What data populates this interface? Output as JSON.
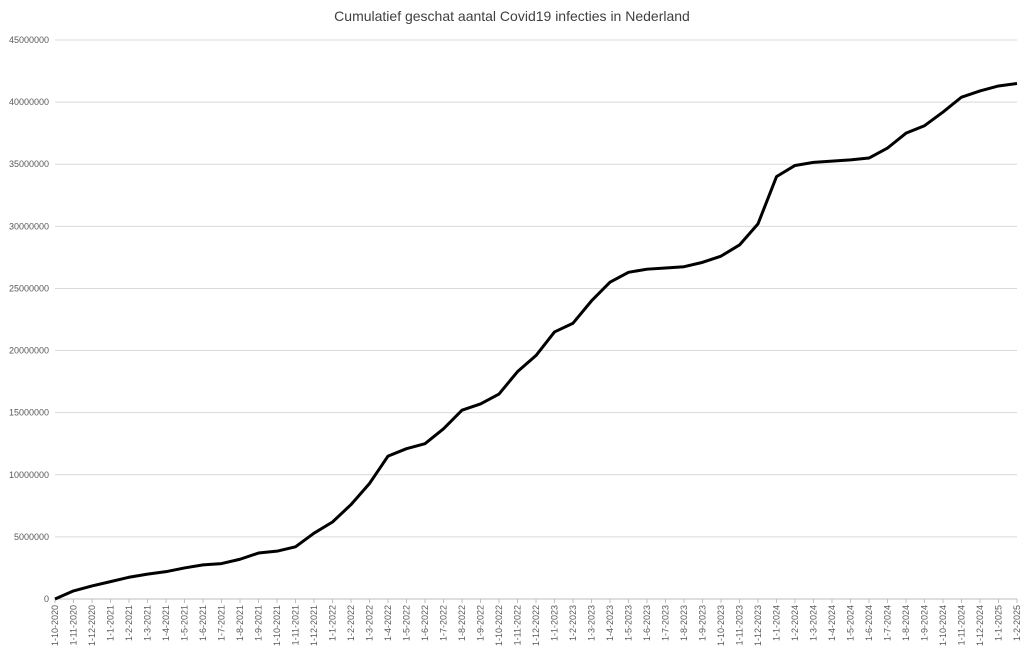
{
  "chart_data": {
    "type": "line",
    "title": "Cumulatief geschat aantal Covid19 infecties in Nederland",
    "categories": [
      "1-10-2020",
      "1-11-2020",
      "1-12-2020",
      "1-1-2021",
      "1-2-2021",
      "1-3-2021",
      "1-4-2021",
      "1-5-2021",
      "1-6-2021",
      "1-7-2021",
      "1-8-2021",
      "1-9-2021",
      "1-10-2021",
      "1-11-2021",
      "1-12-2021",
      "1-1-2022",
      "1-2-2022",
      "1-3-2022",
      "1-4-2022",
      "1-5-2022",
      "1-6-2022",
      "1-7-2022",
      "1-8-2022",
      "1-9-2022",
      "1-10-2022",
      "1-11-2022",
      "1-12-2022",
      "1-1-2023",
      "1-2-2023",
      "1-3-2023",
      "1-4-2023",
      "1-5-2023",
      "1-6-2023",
      "1-7-2023",
      "1-8-2023",
      "1-9-2023",
      "1-10-2023",
      "1-11-2023",
      "1-12-2023",
      "1-1-2024",
      "1-2-2024",
      "1-3-2024",
      "1-4-2024",
      "1-5-2024",
      "1-6-2024",
      "1-7-2024",
      "1-8-2024",
      "1-9-2024",
      "1-10-2024",
      "1-11-2024",
      "1-12-2024",
      "1-1-2025",
      "1-2-2025"
    ],
    "values": [
      0,
      650000,
      1050000,
      1400000,
      1750000,
      2000000,
      2200000,
      2500000,
      2750000,
      2850000,
      3200000,
      3700000,
      3850000,
      4200000,
      5300000,
      6200000,
      7600000,
      9300000,
      11500000,
      12100000,
      12500000,
      13700000,
      15200000,
      15700000,
      16500000,
      18300000,
      19600000,
      21500000,
      22200000,
      24000000,
      25500000,
      26300000,
      26550000,
      26650000,
      26750000,
      27100000,
      27600000,
      28500000,
      30200000,
      34000000,
      34900000,
      35150000,
      35250000,
      35350000,
      35500000,
      36300000,
      37500000,
      38100000,
      39200000,
      40400000,
      40900000,
      41300000,
      41500000
    ],
    "color": "#000000",
    "ylim": [
      0,
      45000000
    ],
    "yticks": [
      0,
      5000000,
      10000000,
      15000000,
      20000000,
      25000000,
      30000000,
      35000000,
      40000000,
      45000000
    ],
    "grid": true
  }
}
